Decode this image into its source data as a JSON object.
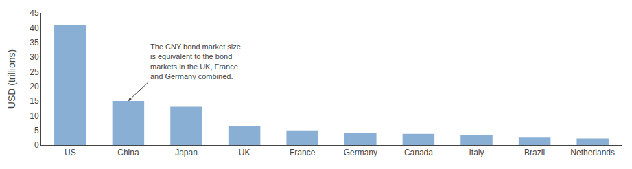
{
  "chart_data": {
    "type": "bar",
    "categories": [
      "US",
      "China",
      "Japan",
      "UK",
      "France",
      "Germany",
      "Canada",
      "Italy",
      "Brazil",
      "Netherlands"
    ],
    "values": [
      41,
      15,
      13,
      6.5,
      5.0,
      4.0,
      3.8,
      3.5,
      2.5,
      2.2
    ],
    "color": "#8aafd4",
    "ylabel": "USD (trillions)",
    "ylim": [
      0,
      45
    ],
    "yticks": [
      0,
      5,
      10,
      15,
      20,
      25,
      30,
      35,
      40,
      45
    ],
    "grid": false,
    "annotations": [
      {
        "text": "The CNY bond market size\nis equivalent to the bond\nmarkets in the UK, France\nand Germany combined.",
        "x": "China"
      }
    ]
  }
}
